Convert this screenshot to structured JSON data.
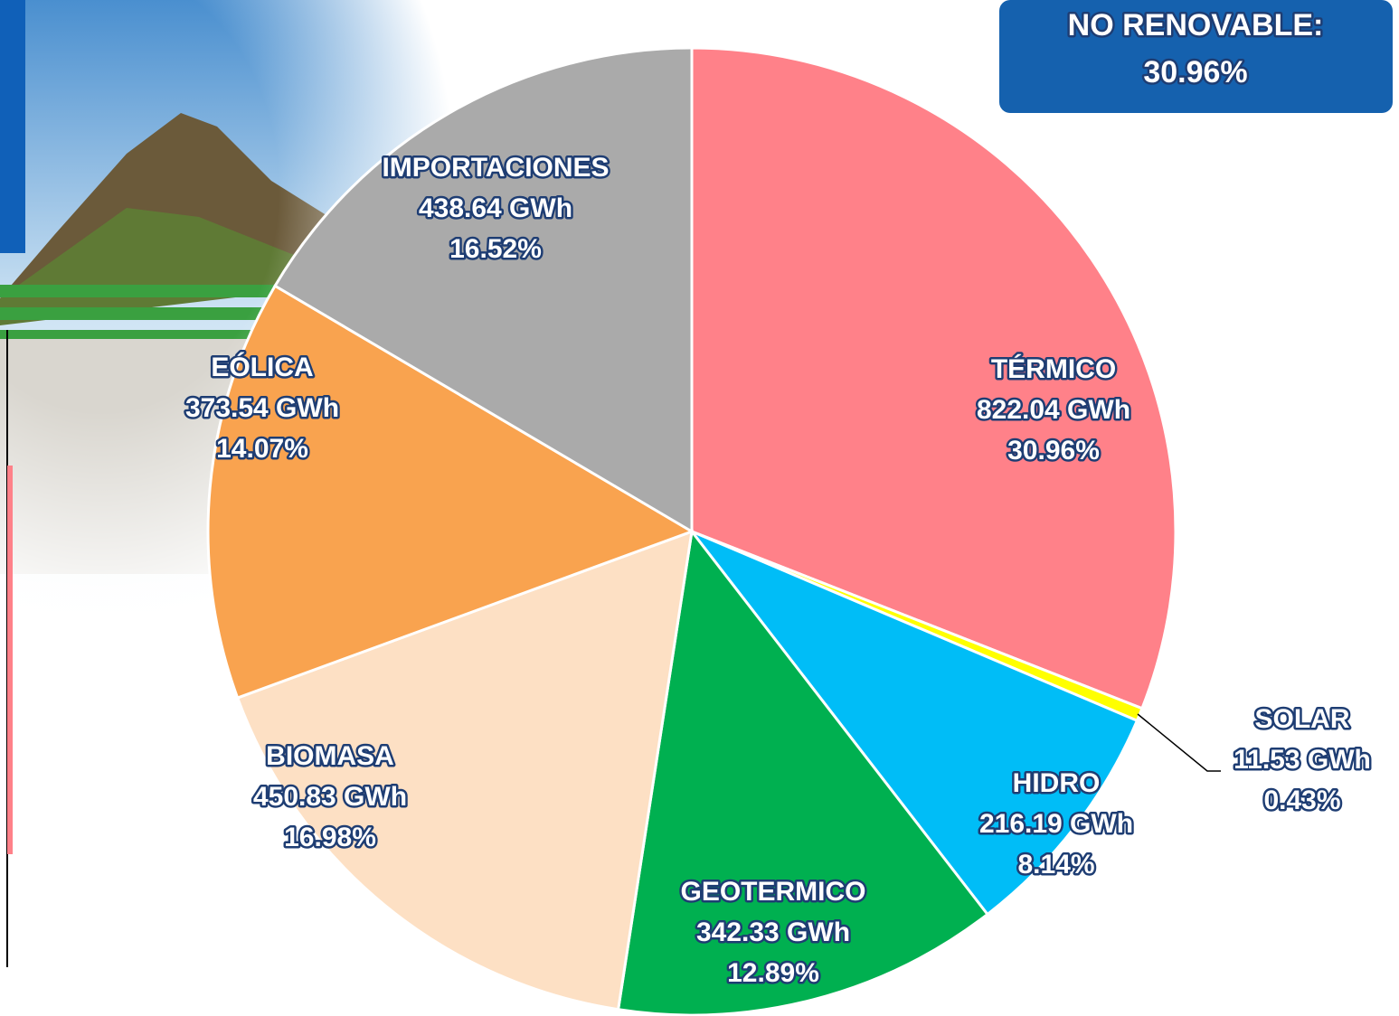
{
  "chart_data": {
    "type": "pie",
    "annotation": {
      "text": "NO RENOVABLE:",
      "value_label": "30.96%"
    },
    "categories": [
      "TÉRMICO",
      "SOLAR",
      "HIDRO",
      "GEOTERMICO",
      "BIOMASA",
      "EÓLICA",
      "IMPORTACIONES"
    ],
    "values": [
      822.04,
      11.53,
      216.19,
      342.33,
      450.83,
      373.54,
      438.64
    ],
    "value_labels": [
      "822.04 GWh",
      "11.53 GWh",
      "216.19 GWh",
      "342.33 GWh",
      "450.83 GWh",
      "373.54 GWh",
      "438.64  GWh"
    ],
    "percentages": [
      30.96,
      0.43,
      8.14,
      12.89,
      16.98,
      14.07,
      16.52
    ],
    "percentage_labels": [
      "30.96%",
      "0.43%",
      "8.14%",
      "12.89%",
      "16.98%",
      "14.07%",
      "16.52%"
    ],
    "colors": [
      "#ff8189",
      "#ffff00",
      "#00bdf7",
      "#00b050",
      "#fde0c4",
      "#f9a34f",
      "#aaaaaa"
    ]
  }
}
